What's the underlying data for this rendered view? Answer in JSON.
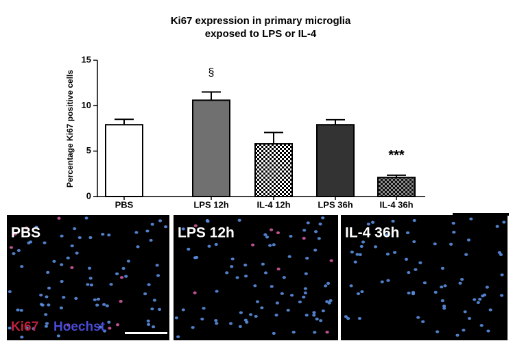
{
  "chart_data": {
    "type": "bar",
    "title": [
      "Ki67 expression in primary microglia",
      "exposed to LPS or IL-4"
    ],
    "y_label": "Percentage Ki67 positive cells",
    "categories": [
      "PBS",
      "LPS 12h",
      "IL-4 12h",
      "LPS 36h",
      "IL-4 36h"
    ],
    "values": [
      7.9,
      10.6,
      5.8,
      7.9,
      2.1
    ],
    "errors": [
      0.6,
      0.9,
      1.25,
      0.55,
      0.25
    ],
    "colors": [
      "#ffffff",
      "#707070",
      "#ffffff",
      "#333333",
      "#8a8a8a"
    ],
    "fills": [
      "solid",
      "solid",
      "checker",
      "solid",
      "checker"
    ],
    "ylim": [
      0,
      15
    ],
    "yticks": [
      0,
      5,
      10,
      15
    ],
    "annotations": [
      {
        "text": "§",
        "category": "LPS 12h"
      },
      {
        "text": "***",
        "category": "IL-4 36h"
      }
    ]
  },
  "micrographs": {
    "panels": [
      "PBS",
      "LPS 12h",
      "IL-4 36h"
    ],
    "stains": [
      {
        "text": "Ki67",
        "color": "#c0203a"
      },
      {
        "text": "Hoechst",
        "color": "#4a4ad8"
      }
    ]
  }
}
